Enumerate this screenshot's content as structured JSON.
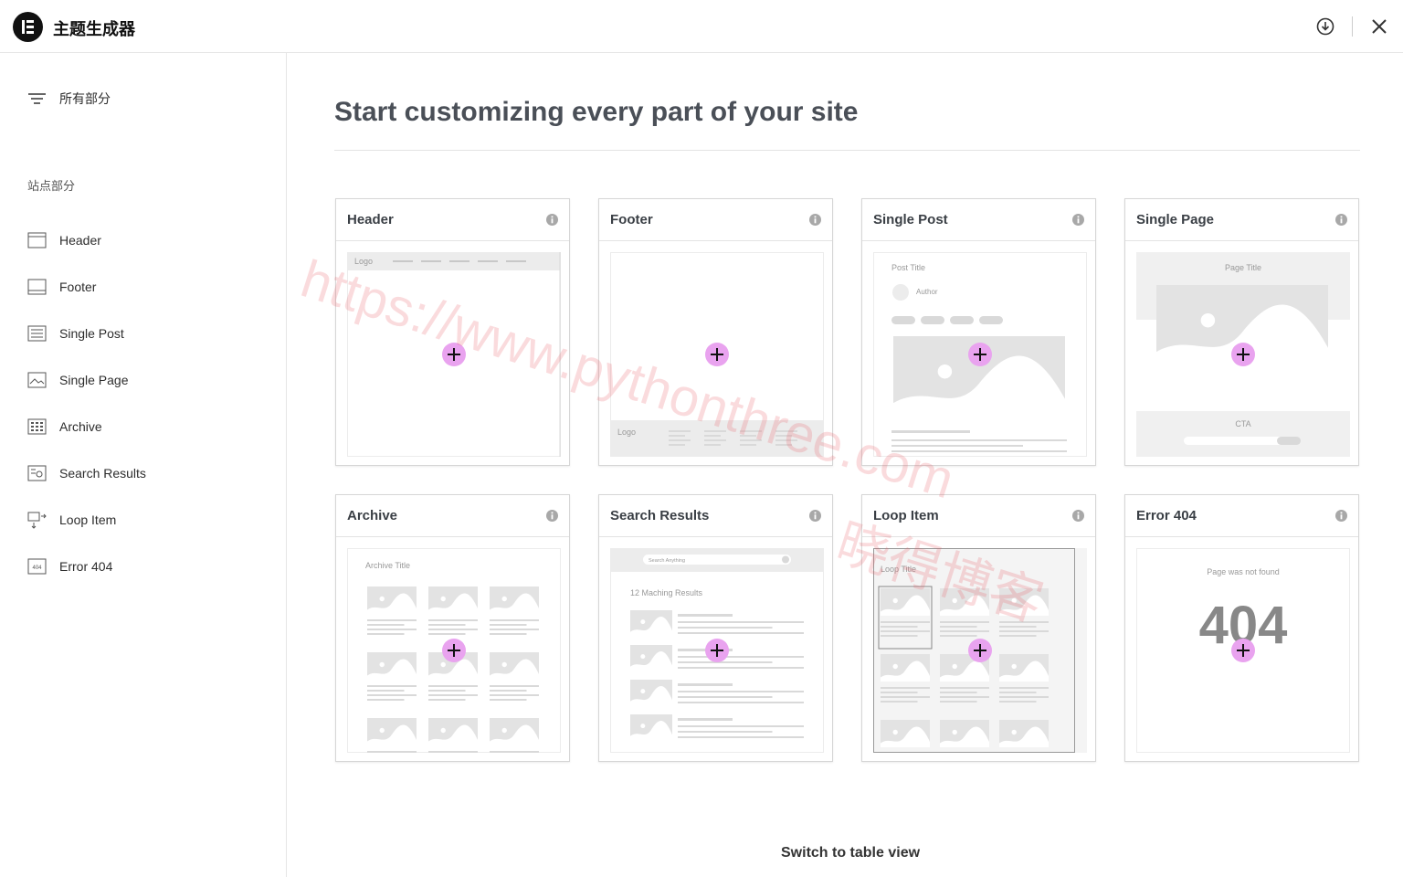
{
  "header": {
    "title": "主题生成器"
  },
  "sidebar": {
    "all_sections": "所有部分",
    "section_heading": "站点部分",
    "items": [
      "Header",
      "Footer",
      "Single Post",
      "Single Page",
      "Archive",
      "Search Results",
      "Loop Item",
      "Error 404"
    ]
  },
  "main": {
    "title": "Start customizing every part of your site"
  },
  "cards": [
    {
      "title": "Header",
      "labels": [
        "Logo"
      ]
    },
    {
      "title": "Footer",
      "labels": [
        "Logo"
      ]
    },
    {
      "title": "Single Post",
      "labels": [
        "Post Title",
        "Author"
      ]
    },
    {
      "title": "Single Page",
      "labels": [
        "Page Title",
        "CTA"
      ]
    },
    {
      "title": "Archive",
      "labels": [
        "Archive Title"
      ]
    },
    {
      "title": "Search Results",
      "labels": [
        "Search Anything",
        "12 Maching Results"
      ]
    },
    {
      "title": "Loop Item",
      "labels": [
        "Loop Title"
      ]
    },
    {
      "title": "Error 404",
      "labels": [
        "Page was not found",
        "404"
      ]
    }
  ],
  "footer": {
    "switch": "Switch to table view"
  },
  "watermark": [
    "https://www.pythonthree.com",
    "晓得博客"
  ]
}
